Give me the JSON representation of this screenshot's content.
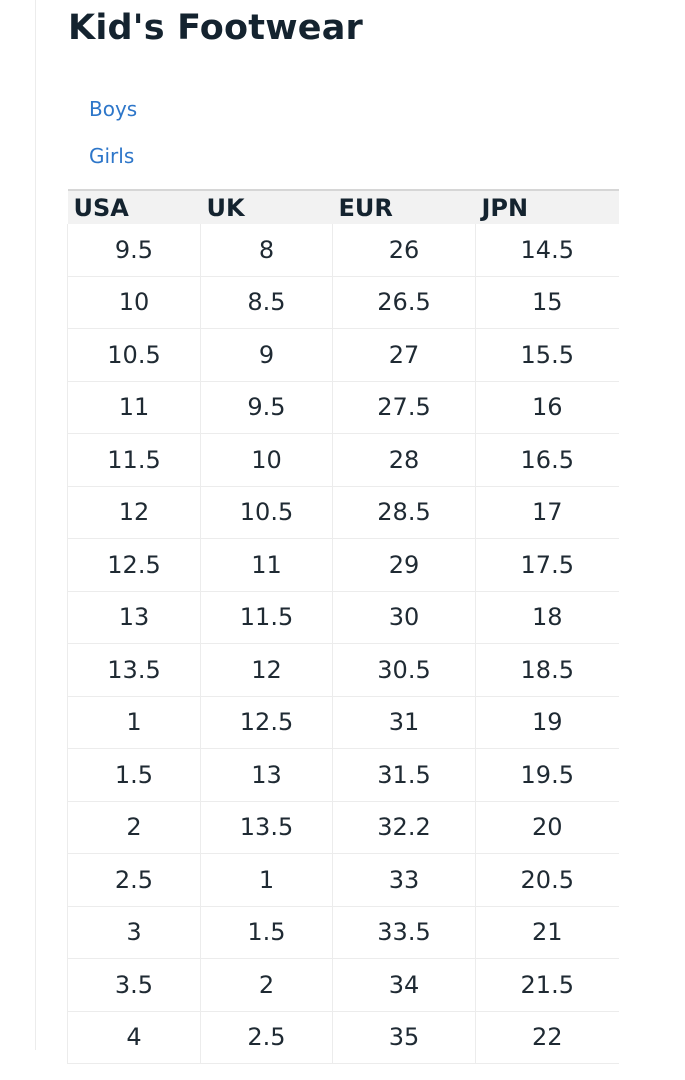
{
  "page": {
    "title": "Kid's Footwear"
  },
  "categories": [
    {
      "label": "Boys"
    },
    {
      "label": "Girls"
    }
  ],
  "table": {
    "headers": [
      "USA",
      "UK",
      "EUR",
      "JPN"
    ],
    "rows": [
      [
        "9.5",
        "8",
        "26",
        "14.5"
      ],
      [
        "10",
        "8.5",
        "26.5",
        "15"
      ],
      [
        "10.5",
        "9",
        "27",
        "15.5"
      ],
      [
        "11",
        "9.5",
        "27.5",
        "16"
      ],
      [
        "11.5",
        "10",
        "28",
        "16.5"
      ],
      [
        "12",
        "10.5",
        "28.5",
        "17"
      ],
      [
        "12.5",
        "11",
        "29",
        "17.5"
      ],
      [
        "13",
        "11.5",
        "30",
        "18"
      ],
      [
        "13.5",
        "12",
        "30.5",
        "18.5"
      ],
      [
        "1",
        "12.5",
        "31",
        "19"
      ],
      [
        "1.5",
        "13",
        "31.5",
        "19.5"
      ],
      [
        "2",
        "13.5",
        "32.2",
        "20"
      ],
      [
        "2.5",
        "1",
        "33",
        "20.5"
      ],
      [
        "3",
        "1.5",
        "33.5",
        "21"
      ],
      [
        "3.5",
        "2",
        "34",
        "21.5"
      ],
      [
        "4",
        "2.5",
        "35",
        "22"
      ]
    ]
  },
  "colors": {
    "link": "#2d76c9",
    "title": "#14232f",
    "header_bg": "#f2f2f2"
  }
}
